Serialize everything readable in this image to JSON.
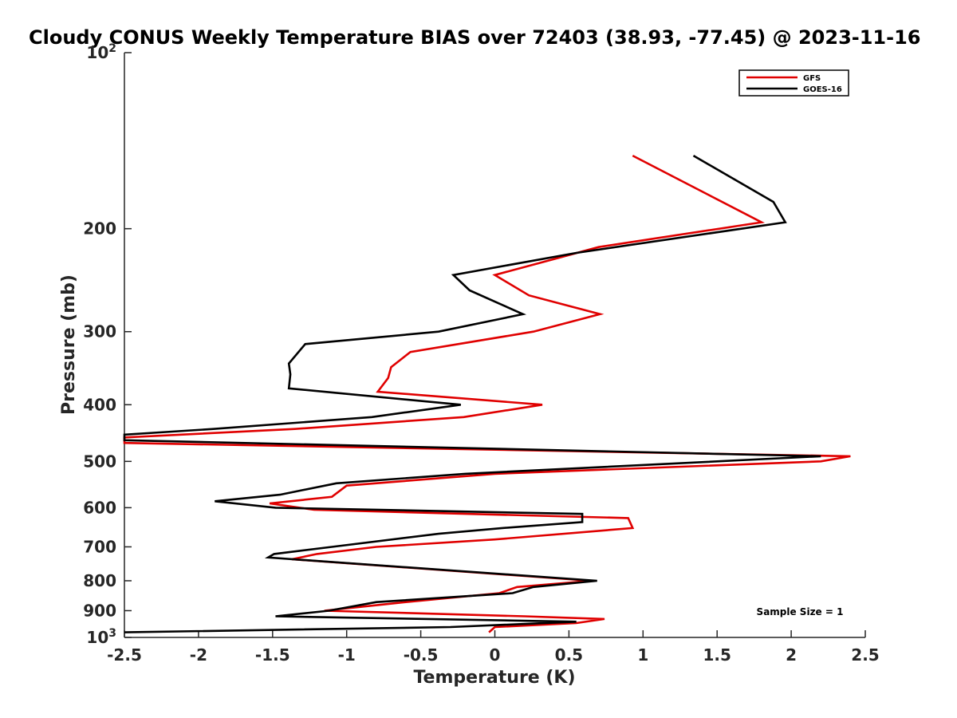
{
  "chart_data": {
    "type": "line",
    "title": "Cloudy CONUS Weekly Temperature BIAS over 72403 (38.93, -77.45) @ 2023-11-16",
    "xlabel": "Temperature (K)",
    "ylabel": "Pressure (mb)",
    "xlim": [
      -2.5,
      2.5
    ],
    "ylim": [
      1000,
      100
    ],
    "yscale": "log",
    "x_ticks": [
      "-2.5",
      "-2",
      "-1.5",
      "-1",
      "-0.5",
      "0",
      "0.5",
      "1",
      "1.5",
      "2",
      "2.5"
    ],
    "y_ticks_major": {
      "top": {
        "base": "10",
        "exp": "2"
      },
      "bottom": {
        "base": "10",
        "exp": "3"
      }
    },
    "y_ticks": [
      "200",
      "300",
      "400",
      "500",
      "600",
      "700",
      "800",
      "900"
    ],
    "grid": false,
    "legend_position": "top-right",
    "annotation": "Sample Size = 1",
    "series": [
      {
        "name": "GFS",
        "color": "#e00000",
        "points": [
          [
            0.93,
            150
          ],
          [
            1.8,
            195
          ],
          [
            0.7,
            215
          ],
          [
            0.0,
            240
          ],
          [
            0.23,
            260
          ],
          [
            0.71,
            280
          ],
          [
            0.26,
            300
          ],
          [
            -0.57,
            325
          ],
          [
            -0.7,
            345
          ],
          [
            -0.72,
            360
          ],
          [
            -0.79,
            380
          ],
          [
            0.32,
            400
          ],
          [
            -0.21,
            420
          ],
          [
            -1.35,
            440
          ],
          [
            -2.5,
            455
          ],
          [
            -2.5,
            465
          ],
          [
            2.4,
            490
          ],
          [
            2.2,
            500
          ],
          [
            0.0,
            525
          ],
          [
            -1.0,
            550
          ],
          [
            -1.1,
            575
          ],
          [
            -1.52,
            590
          ],
          [
            -1.22,
            605
          ],
          [
            0.9,
            625
          ],
          [
            0.93,
            650
          ],
          [
            0.0,
            680
          ],
          [
            -0.8,
            700
          ],
          [
            -1.2,
            720
          ],
          [
            -1.37,
            735
          ],
          [
            0.65,
            800
          ],
          [
            0.15,
            820
          ],
          [
            0.03,
            840
          ],
          [
            -0.6,
            870
          ],
          [
            -1.15,
            900
          ],
          [
            0.2,
            920
          ],
          [
            0.74,
            930
          ],
          [
            0.55,
            945
          ],
          [
            0.0,
            960
          ],
          [
            -0.04,
            980
          ]
        ]
      },
      {
        "name": "GOES-16",
        "color": "#000000",
        "points": [
          [
            1.34,
            150
          ],
          [
            1.88,
            180
          ],
          [
            1.96,
            195
          ],
          [
            0.55,
            220
          ],
          [
            -0.28,
            240
          ],
          [
            -0.17,
            255
          ],
          [
            0.19,
            280
          ],
          [
            -0.38,
            300
          ],
          [
            -1.28,
            315
          ],
          [
            -1.39,
            340
          ],
          [
            -1.38,
            355
          ],
          [
            -1.39,
            375
          ],
          [
            -0.23,
            400
          ],
          [
            -0.83,
            420
          ],
          [
            -1.9,
            440
          ],
          [
            -2.5,
            450
          ],
          [
            -2.5,
            460
          ],
          [
            2.2,
            490
          ],
          [
            -0.2,
            525
          ],
          [
            -1.07,
            545
          ],
          [
            -1.45,
            570
          ],
          [
            -1.89,
            585
          ],
          [
            -1.48,
            600
          ],
          [
            0.59,
            615
          ],
          [
            0.59,
            635
          ],
          [
            0.05,
            650
          ],
          [
            -0.38,
            665
          ],
          [
            -1.1,
            700
          ],
          [
            -1.49,
            720
          ],
          [
            -1.53,
            730
          ],
          [
            0.69,
            800
          ],
          [
            0.26,
            820
          ],
          [
            0.12,
            840
          ],
          [
            -0.8,
            870
          ],
          [
            -1.12,
            900
          ],
          [
            -1.48,
            920
          ],
          [
            0.55,
            940
          ],
          [
            -0.3,
            960
          ],
          [
            -2.5,
            980
          ]
        ]
      }
    ]
  }
}
